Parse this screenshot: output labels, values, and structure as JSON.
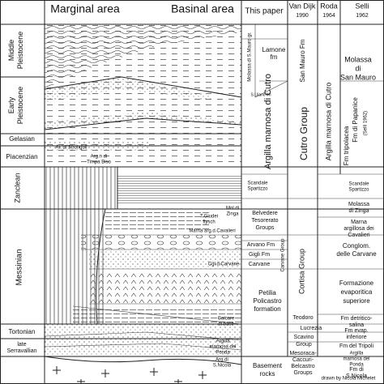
{
  "header": {
    "marginal_area": "Marginal area",
    "basinal_area": "Basinal area",
    "this_paper": "This paper",
    "van_dijk": "Van Dijk",
    "van_dijk_year": "1990",
    "roda": "Roda",
    "roda_year": "1964",
    "selli": "Selli",
    "selli_year": "1962"
  },
  "stages": [
    [
      "Middle",
      "Pleistocene"
    ],
    [
      "Early",
      "Pleistocene"
    ],
    [
      "Gelasian"
    ],
    [
      "Piacenzian"
    ],
    [
      "Zanclean"
    ],
    [
      "Messinian"
    ],
    [
      "Tortonian"
    ],
    [
      "late",
      "Serravallian"
    ]
  ],
  "lithology_labels": [
    [
      "Ar. di Strongoli"
    ],
    [
      "Arg.n di",
      "Timpa Biso"
    ],
    [
      "Mol.di",
      "Zinga"
    ],
    [
      "T.Giudei",
      "flysch"
    ],
    [
      "Marna arg.d.Cavalieri"
    ],
    [
      "Cgl.d.Carvane"
    ],
    [
      "Calcare",
      "di base"
    ],
    [
      "Argilla",
      "marnosa del",
      "Ponda"
    ],
    [
      "Arg.di",
      "S.Nicola"
    ]
  ],
  "this_paper": [
    [
      "Lamone",
      "fm"
    ],
    [
      "Molassa di S.Mauro gr."
    ],
    [
      "S.Lliano fm"
    ],
    [
      "Argilla marnosa di Cutro"
    ],
    [
      "Scandale",
      "Spartizzo"
    ],
    [
      "Belvedere",
      "Tesorerato",
      "Groups"
    ],
    [
      "Arvano Fm"
    ],
    [
      "Gigli Fm"
    ],
    [
      "Carvane"
    ],
    [
      "Petilia",
      "Policastro",
      "formation"
    ],
    [
      "Basement",
      "rocks"
    ]
  ],
  "van_dijk": [
    [
      "San Mauro Fm"
    ],
    [
      "Cutro Group"
    ],
    [
      "Carvane Group"
    ],
    [
      "Cortisa Group"
    ],
    [
      "Teodoro"
    ],
    [
      "Lucrezia"
    ],
    [
      "Scavino",
      "Group"
    ],
    [
      "Mesoraca-",
      "Caccuri-",
      "Belcastro",
      "Groups"
    ]
  ],
  "roda_selli": [
    [
      "Molassa",
      "di",
      "San Mauro"
    ],
    [
      "Argilla marnosa di Cutro"
    ],
    [
      "Fm tripolacea"
    ],
    [
      "Fm di Papanice"
    ],
    [
      "(Selli 1962)"
    ],
    [
      "Scandale",
      "Spartizzo"
    ],
    [
      "Molassa",
      "di Zinga"
    ],
    [
      "Marna",
      "argillosa dei",
      "Cavalieri"
    ],
    [
      "Conglom.",
      "delle Carvane"
    ],
    [
      "Formazione",
      "evaporitica",
      "superiore"
    ],
    [
      "Fm detritico-",
      "salina"
    ],
    [
      "Fm evap.",
      "inferiore"
    ],
    [
      "Fm del Tripoli"
    ],
    [
      "Argilla",
      "marnosa del",
      "Ponda"
    ],
    [
      "Fm di",
      "S.Nicola"
    ]
  ],
  "credit": "drawn by Nicola Michelet"
}
